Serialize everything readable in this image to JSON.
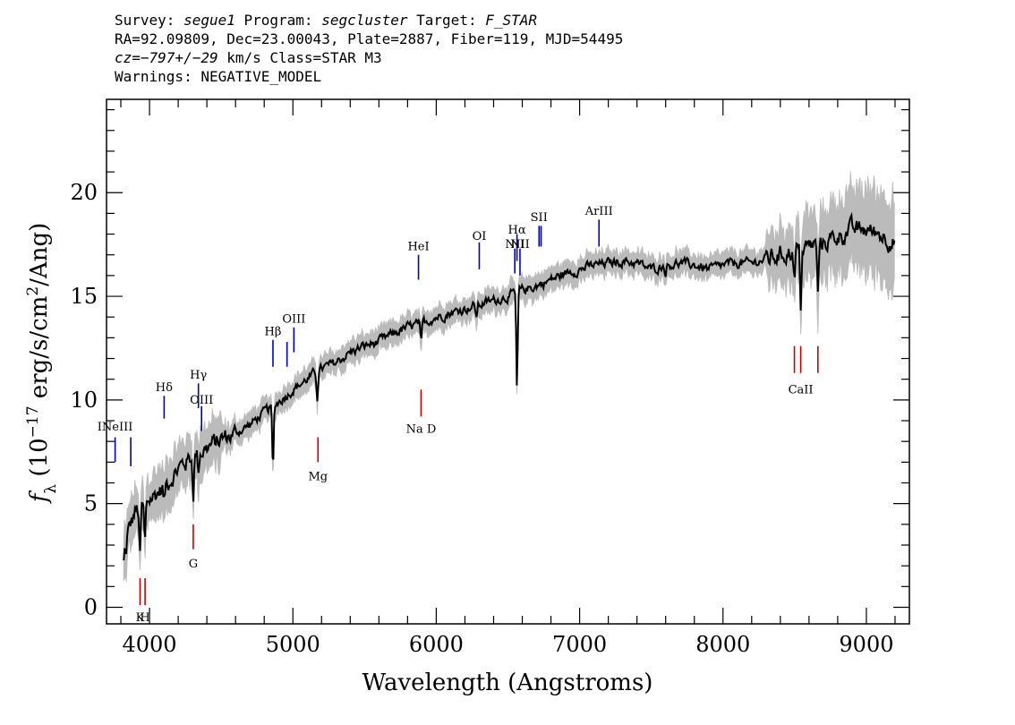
{
  "header": {
    "line1": {
      "survey_label": "Survey: ",
      "survey": "segue1",
      "program_label": " Program: ",
      "program": "segcluster",
      "target_label": " Target: ",
      "target": "F_STAR"
    },
    "line2": "RA=92.09809, Dec=23.00043, Plate=2887, Fiber=119, MJD=54495",
    "line3": {
      "cz": "cz=−797+/−29",
      "rest": " km/s Class=STAR M3"
    },
    "line4": "Warnings: NEGATIVE_MODEL"
  },
  "chart_data": {
    "type": "line",
    "xlabel": "Wavelength (Angstroms)",
    "ylabel": {
      "f": "f",
      "lambda": "λ",
      "pre": " (10",
      "exp": "−17",
      "mid": " erg/s/cm",
      "exp2": "2",
      "post": "/Ang)"
    },
    "xlim": [
      3700,
      9300
    ],
    "ylim": [
      -0.8,
      24.5
    ],
    "xticks": [
      4000,
      5000,
      6000,
      7000,
      8000,
      9000
    ],
    "yticks": [
      0,
      5,
      10,
      15,
      20
    ],
    "x_minor_step": 200,
    "y_minor_step": 1,
    "colors": {
      "spectrum": "#000000",
      "noise_band": "#bbbbbb",
      "emission": "#0000cc",
      "absorption": "#cc0000"
    },
    "continuum": [
      [
        3800,
        3.2
      ],
      [
        3850,
        3.6
      ],
      [
        3900,
        4.6
      ],
      [
        3950,
        4.8
      ],
      [
        4000,
        5.2
      ],
      [
        4100,
        5.8
      ],
      [
        4200,
        6.7
      ],
      [
        4300,
        7.3
      ],
      [
        4400,
        7.7
      ],
      [
        4500,
        8.1
      ],
      [
        4600,
        8.4
      ],
      [
        4700,
        8.8
      ],
      [
        4800,
        9.4
      ],
      [
        4900,
        9.9
      ],
      [
        5000,
        10.5
      ],
      [
        5100,
        11.0
      ],
      [
        5200,
        11.5
      ],
      [
        5300,
        11.8
      ],
      [
        5400,
        12.3
      ],
      [
        5500,
        12.6
      ],
      [
        5600,
        12.8
      ],
      [
        5700,
        13.2
      ],
      [
        5800,
        13.5
      ],
      [
        5900,
        13.7
      ],
      [
        6000,
        14.0
      ],
      [
        6100,
        14.2
      ],
      [
        6200,
        14.4
      ],
      [
        6300,
        14.6
      ],
      [
        6400,
        14.8
      ],
      [
        6500,
        15.0
      ],
      [
        6600,
        15.3
      ],
      [
        6700,
        15.5
      ],
      [
        6800,
        15.8
      ],
      [
        6900,
        16.1
      ],
      [
        7000,
        16.3
      ],
      [
        7100,
        16.5
      ],
      [
        7200,
        16.6
      ],
      [
        7300,
        16.7
      ],
      [
        7400,
        16.6
      ],
      [
        7500,
        16.3
      ],
      [
        7600,
        16.5
      ],
      [
        7700,
        16.6
      ],
      [
        7800,
        16.5
      ],
      [
        7900,
        16.3
      ],
      [
        8000,
        16.5
      ],
      [
        8100,
        16.6
      ],
      [
        8200,
        16.6
      ],
      [
        8300,
        16.8
      ],
      [
        8400,
        17.0
      ],
      [
        8500,
        17.2
      ],
      [
        8600,
        17.4
      ],
      [
        8700,
        17.6
      ],
      [
        8800,
        17.9
      ],
      [
        8900,
        18.2
      ],
      [
        9000,
        18.2
      ],
      [
        9100,
        18.0
      ],
      [
        9200,
        17.6
      ]
    ],
    "features": [
      [
        3820,
        -1.2
      ],
      [
        3835,
        -1.0
      ],
      [
        3933,
        -2.4
      ],
      [
        3968,
        -2.0
      ],
      [
        4102,
        -0.8
      ],
      [
        4305,
        -1.8
      ],
      [
        4341,
        -0.8
      ],
      [
        4861,
        -3.2
      ],
      [
        5170,
        -1.2
      ],
      [
        5894,
        -1.1
      ],
      [
        6563,
        -4.8
      ],
      [
        6280,
        -0.6
      ],
      [
        7600,
        -0.3
      ],
      [
        8498,
        -1.5
      ],
      [
        8542,
        -2.7
      ],
      [
        8662,
        -2.6
      ]
    ],
    "lines": [
      {
        "label": "INeIII",
        "wave": 3760,
        "y_bottom": 7.0,
        "y_top": 8.2,
        "color": "emission",
        "label_y": 8.7
      },
      {
        "label": "",
        "wave": 3869,
        "y_bottom": 6.8,
        "y_top": 8.2,
        "color": "emission",
        "label_y": null
      },
      {
        "label": "Hδ",
        "wave": 4102,
        "y_bottom": 9.1,
        "y_top": 10.2,
        "color": "emission",
        "label_y": 10.6
      },
      {
        "label": "Hγ",
        "wave": 4341,
        "y_bottom": 9.6,
        "y_top": 10.8,
        "color": "emission",
        "label_y": 11.2
      },
      {
        "label": "OIII",
        "wave": 4363,
        "y_bottom": 8.5,
        "y_top": 9.7,
        "color": "emission",
        "label_y": 10.0
      },
      {
        "label": "Hβ",
        "wave": 4861,
        "y_bottom": 11.6,
        "y_top": 12.9,
        "color": "emission",
        "label_y": 13.3
      },
      {
        "label": "",
        "wave": 4959,
        "y_bottom": 11.6,
        "y_top": 12.8,
        "color": "emission",
        "label_y": null
      },
      {
        "label": "OIII",
        "wave": 5007,
        "y_bottom": 12.3,
        "y_top": 13.5,
        "color": "emission",
        "label_y": 13.9
      },
      {
        "label": "HeI",
        "wave": 5876,
        "y_bottom": 15.8,
        "y_top": 17.0,
        "color": "emission",
        "label_y": 17.4
      },
      {
        "label": "OI",
        "wave": 6300,
        "y_bottom": 16.3,
        "y_top": 17.6,
        "color": "emission",
        "label_y": 17.9
      },
      {
        "label": "NII",
        "wave": 6548,
        "y_bottom": 16.1,
        "y_top": 17.3,
        "color": "emission",
        "label_y": 17.5
      },
      {
        "label": "Hα",
        "wave": 6563,
        "y_bottom": 16.7,
        "y_top": 18.0,
        "color": "emission",
        "label_y": 18.2
      },
      {
        "label": "NII",
        "wave": 6584,
        "y_bottom": 16.0,
        "y_top": 17.3,
        "color": "emission",
        "label_y": 17.5
      },
      {
        "label": "SII",
        "wave": 6717,
        "y_bottom": 17.4,
        "y_top": 18.4,
        "color": "emission",
        "label_y": 18.8
      },
      {
        "label": "",
        "wave": 6731,
        "y_bottom": 17.4,
        "y_top": 18.4,
        "color": "emission",
        "label_y": null
      },
      {
        "label": "ArIII",
        "wave": 7135,
        "y_bottom": 17.4,
        "y_top": 18.7,
        "color": "emission",
        "label_y": 19.1
      },
      {
        "label": "K",
        "wave": 3934,
        "y_bottom": 0.1,
        "y_top": 1.4,
        "color": "absorption",
        "label_y": -0.5
      },
      {
        "label": "H",
        "wave": 3969,
        "y_bottom": 0.1,
        "y_top": 1.4,
        "color": "absorption",
        "label_y": -0.5
      },
      {
        "label": "G",
        "wave": 4305,
        "y_bottom": 2.8,
        "y_top": 4.0,
        "color": "absorption",
        "label_y": 2.1
      },
      {
        "label": "Mg",
        "wave": 5175,
        "y_bottom": 7.0,
        "y_top": 8.2,
        "color": "absorption",
        "label_y": 6.3
      },
      {
        "label": "Na D",
        "wave": 5894,
        "y_bottom": 9.2,
        "y_top": 10.5,
        "color": "absorption",
        "label_y": 8.6
      },
      {
        "label": "",
        "wave": 8498,
        "y_bottom": 12.6,
        "y_top": 11.3,
        "color": "absorption",
        "label_y": null
      },
      {
        "label": "CaII",
        "wave": 8542,
        "y_bottom": 12.6,
        "y_top": 11.3,
        "color": "absorption",
        "label_y": 10.5
      },
      {
        "label": "",
        "wave": 8662,
        "y_bottom": 12.6,
        "y_top": 11.3,
        "color": "absorption",
        "label_y": null
      }
    ]
  }
}
